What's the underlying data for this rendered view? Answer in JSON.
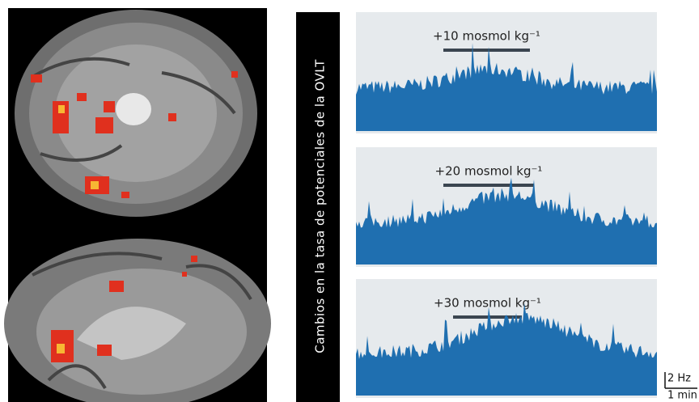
{
  "y_axis_label": "Cambios en la tasa de potenciales de la OVLT",
  "panels": [
    {
      "label": "+10 mosmol kg⁻¹"
    },
    {
      "label": "+20 mosmol kg⁻¹"
    },
    {
      "label": "+30 mosmol kg⁻¹"
    }
  ],
  "scale_bar": {
    "y": "2 Hz",
    "x": "1 min"
  }
}
